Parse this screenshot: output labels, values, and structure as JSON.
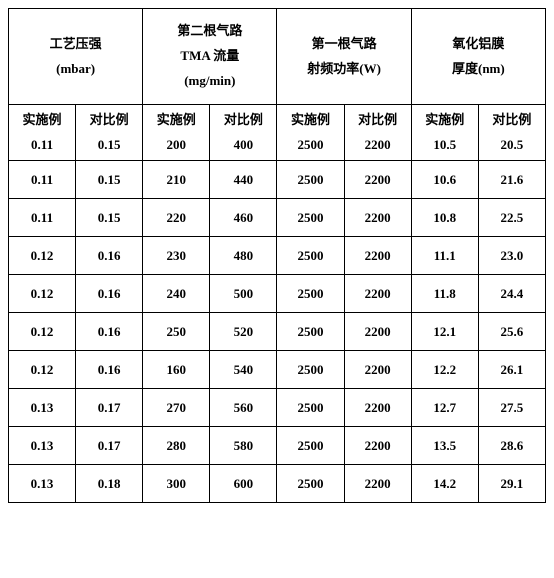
{
  "headers": {
    "col1": {
      "line1": "工艺压强",
      "line2": "(mbar)"
    },
    "col2": {
      "line1": "第二根气路",
      "line2": "TMA 流量",
      "line3": "(mg/min)"
    },
    "col3": {
      "line1": "第一根气路",
      "line2": "射频功率(W)"
    },
    "col4": {
      "line1": "氧化铝膜",
      "line2": "厚度(nm)"
    }
  },
  "subheaders": {
    "shi": "实施例",
    "dui": "对比例"
  },
  "rows": [
    {
      "c1a": "0.11",
      "c1b": "0.15",
      "c2a": "200",
      "c2b": "400",
      "c3a": "2500",
      "c3b": "2200",
      "c4a": "10.5",
      "c4b": "20.5"
    },
    {
      "c1a": "0.11",
      "c1b": "0.15",
      "c2a": "210",
      "c2b": "440",
      "c3a": "2500",
      "c3b": "2200",
      "c4a": "10.6",
      "c4b": "21.6"
    },
    {
      "c1a": "0.11",
      "c1b": "0.15",
      "c2a": "220",
      "c2b": "460",
      "c3a": "2500",
      "c3b": "2200",
      "c4a": "10.8",
      "c4b": "22.5"
    },
    {
      "c1a": "0.12",
      "c1b": "0.16",
      "c2a": "230",
      "c2b": "480",
      "c3a": "2500",
      "c3b": "2200",
      "c4a": "11.1",
      "c4b": "23.0"
    },
    {
      "c1a": "0.12",
      "c1b": "0.16",
      "c2a": "240",
      "c2b": "500",
      "c3a": "2500",
      "c3b": "2200",
      "c4a": "11.8",
      "c4b": "24.4"
    },
    {
      "c1a": "0.12",
      "c1b": "0.16",
      "c2a": "250",
      "c2b": "520",
      "c3a": "2500",
      "c3b": "2200",
      "c4a": "12.1",
      "c4b": "25.6"
    },
    {
      "c1a": "0.12",
      "c1b": "0.16",
      "c2a": "160",
      "c2b": "540",
      "c3a": "2500",
      "c3b": "2200",
      "c4a": "12.2",
      "c4b": "26.1"
    },
    {
      "c1a": "0.13",
      "c1b": "0.17",
      "c2a": "270",
      "c2b": "560",
      "c3a": "2500",
      "c3b": "2200",
      "c4a": "12.7",
      "c4b": "27.5"
    },
    {
      "c1a": "0.13",
      "c1b": "0.17",
      "c2a": "280",
      "c2b": "580",
      "c3a": "2500",
      "c3b": "2200",
      "c4a": "13.5",
      "c4b": "28.6"
    },
    {
      "c1a": "0.13",
      "c1b": "0.18",
      "c2a": "300",
      "c2b": "600",
      "c3a": "2500",
      "c3b": "2200",
      "c4a": "14.2",
      "c4b": "29.1"
    }
  ]
}
